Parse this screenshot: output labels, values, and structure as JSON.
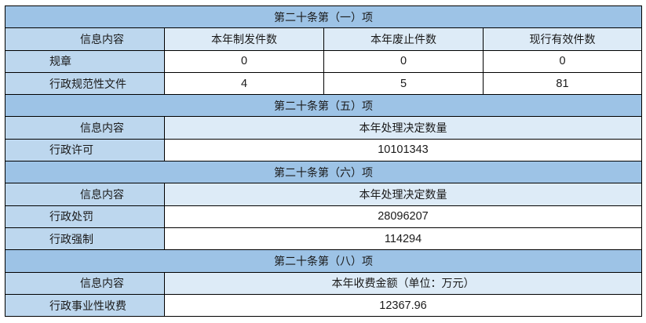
{
  "s1": {
    "title": "第二十条第（一）项",
    "headers": [
      "信息内容",
      "本年制发件数",
      "本年废止件数",
      "现行有效件数"
    ],
    "rows": [
      {
        "label": "规章",
        "values": [
          "0",
          "0",
          "0"
        ]
      },
      {
        "label": "行政规范性文件",
        "values": [
          "4",
          "5",
          "81"
        ]
      }
    ]
  },
  "s5": {
    "title": "第二十条第（五）项",
    "headers": [
      "信息内容",
      "本年处理决定数量"
    ],
    "rows": [
      {
        "label": "行政许可",
        "value": "10101343"
      }
    ]
  },
  "s6": {
    "title": "第二十条第（六）项",
    "headers": [
      "信息内容",
      "本年处理决定数量"
    ],
    "rows": [
      {
        "label": "行政处罚",
        "value": "28096207"
      },
      {
        "label": "行政强制",
        "value": "114294"
      }
    ]
  },
  "s8": {
    "title": "第二十条第（八）项",
    "headers": [
      "信息内容",
      "本年收费金额（单位：万元）"
    ],
    "rows": [
      {
        "label": "行政事业性收费",
        "value": "12367.96"
      }
    ]
  },
  "colors": {
    "section": "#9DC3E6",
    "label": "#BDD7EE",
    "header": "#DDEBF7"
  }
}
